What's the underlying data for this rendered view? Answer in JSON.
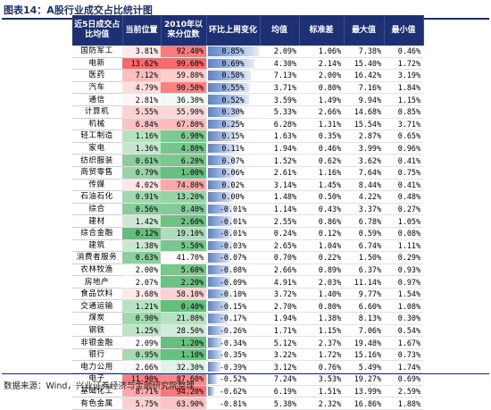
{
  "title": "图表14：A股行业成交占比统计图",
  "source": "数据来源：Wind，兴业证券经济与金融研究院整理",
  "headers": [
    "近5日成交占比均值",
    "当前位置",
    "2010年以来分位数",
    "环比上周变化",
    "均值",
    "标准差",
    "最大值",
    "最小值"
  ],
  "colors": {
    "header_bg": "#1c3073",
    "high": "#f8696b",
    "low": "#63be7b",
    "bar": "#5d83c8"
  },
  "rows": [
    {
      "name": "国防军工",
      "cur": "3.81%",
      "pct": "92.40%",
      "chg": "0.85%",
      "mean": "2.09%",
      "std": "1.06%",
      "max": "7.38%",
      "min": "0.46%"
    },
    {
      "name": "电新",
      "cur": "13.62%",
      "pct": "99.60%",
      "chg": "0.69%",
      "mean": "4.30%",
      "std": "2.14%",
      "max": "15.40%",
      "min": "1.72%"
    },
    {
      "name": "医药",
      "cur": "7.12%",
      "pct": "59.80%",
      "chg": "0.58%",
      "mean": "7.13%",
      "std": "2.00%",
      "max": "16.42%",
      "min": "3.19%"
    },
    {
      "name": "汽车",
      "cur": "4.79%",
      "pct": "90.50%",
      "chg": "0.55%",
      "mean": "3.71%",
      "std": "0.80%",
      "max": "7.16%",
      "min": "1.84%"
    },
    {
      "name": "通信",
      "cur": "2.81%",
      "pct": "36.30%",
      "chg": "0.52%",
      "mean": "3.59%",
      "std": "1.49%",
      "max": "9.94%",
      "min": "1.15%"
    },
    {
      "name": "计算机",
      "cur": "5.55%",
      "pct": "55.90%",
      "chg": "0.30%",
      "mean": "5.33%",
      "std": "2.66%",
      "max": "14.68%",
      "min": "0.85%"
    },
    {
      "name": "机械",
      "cur": "6.84%",
      "pct": "67.80%",
      "chg": "0.25%",
      "mean": "6.28%",
      "std": "1.31%",
      "max": "15.54%",
      "min": "3.71%"
    },
    {
      "name": "轻工制造",
      "cur": "1.16%",
      "pct": "6.90%",
      "chg": "0.15%",
      "mean": "1.63%",
      "std": "0.35%",
      "max": "2.87%",
      "min": "0.65%"
    },
    {
      "name": "家电",
      "cur": "1.36%",
      "pct": "4.80%",
      "chg": "0.11%",
      "mean": "1.94%",
      "std": "0.46%",
      "max": "3.99%",
      "min": "0.96%"
    },
    {
      "name": "纺织服装",
      "cur": "0.61%",
      "pct": "6.20%",
      "chg": "0.07%",
      "mean": "1.52%",
      "std": "0.62%",
      "max": "3.62%",
      "min": "0.41%"
    },
    {
      "name": "商贸零售",
      "cur": "0.79%",
      "pct": "1.00%",
      "chg": "0.06%",
      "mean": "2.61%",
      "std": "1.16%",
      "max": "7.64%",
      "min": "0.75%"
    },
    {
      "name": "传媒",
      "cur": "4.02%",
      "pct": "74.80%",
      "chg": "0.02%",
      "mean": "3.14%",
      "std": "1.45%",
      "max": "8.44%",
      "min": "0.41%"
    },
    {
      "name": "石油石化",
      "cur": "0.91%",
      "pct": "13.20%",
      "chg": "0.00%",
      "mean": "1.48%",
      "std": "0.50%",
      "max": "4.22%",
      "min": "0.48%"
    },
    {
      "name": "综合",
      "cur": "0.56%",
      "pct": "8.40%",
      "chg": "-0.01%",
      "mean": "1.14%",
      "std": "0.43%",
      "max": "3.37%",
      "min": "0.27%"
    },
    {
      "name": "建材",
      "cur": "1.42%",
      "pct": "2.60%",
      "chg": "-0.01%",
      "mean": "2.55%",
      "std": "0.86%",
      "max": "6.78%",
      "min": "1.05%"
    },
    {
      "name": "综合金融",
      "cur": "0.12%",
      "pct": "19.10%",
      "chg": "-0.01%",
      "mean": "0.24%",
      "std": "0.12%",
      "max": "0.59%",
      "min": "0.08%"
    },
    {
      "name": "建筑",
      "cur": "1.38%",
      "pct": "5.50%",
      "chg": "-0.03%",
      "mean": "2.65%",
      "std": "1.04%",
      "max": "6.74%",
      "min": "1.11%"
    },
    {
      "name": "消费者服务",
      "cur": "0.63%",
      "pct": "41.70%",
      "chg": "-0.07%",
      "mean": "0.70%",
      "std": "0.22%",
      "max": "1.50%",
      "min": "0.29%"
    },
    {
      "name": "农林牧渔",
      "cur": "2.00%",
      "pct": "5.60%",
      "chg": "-0.08%",
      "mean": "2.66%",
      "std": "0.89%",
      "max": "6.37%",
      "min": "0.93%"
    },
    {
      "name": "房地产",
      "cur": "2.07%",
      "pct": "2.20%",
      "chg": "-0.09%",
      "mean": "4.91%",
      "std": "2.03%",
      "max": "11.14%",
      "min": "0.97%"
    },
    {
      "name": "食品饮料",
      "cur": "3.68%",
      "pct": "58.10%",
      "chg": "-0.10%",
      "mean": "3.72%",
      "std": "1.40%",
      "max": "9.77%",
      "min": "1.54%"
    },
    {
      "name": "交通运输",
      "cur": "1.21%",
      "pct": "0.40%",
      "chg": "-0.15%",
      "mean": "2.70%",
      "std": "0.80%",
      "max": "6.60%",
      "min": "1.08%"
    },
    {
      "name": "煤炭",
      "cur": "0.90%",
      "pct": "21.80%",
      "chg": "-0.17%",
      "mean": "1.94%",
      "std": "1.38%",
      "max": "8.13%",
      "min": "0.30%"
    },
    {
      "name": "钢铁",
      "cur": "1.25%",
      "pct": "28.50%",
      "chg": "-0.26%",
      "mean": "1.71%",
      "std": "1.15%",
      "max": "7.06%",
      "min": "0.54%"
    },
    {
      "name": "非银金融",
      "cur": "2.09%",
      "pct": "1.20%",
      "chg": "-0.34%",
      "mean": "5.12%",
      "std": "2.37%",
      "max": "19.48%",
      "min": "1.67%"
    },
    {
      "name": "银行",
      "cur": "0.95%",
      "pct": "1.10%",
      "chg": "-0.35%",
      "mean": "3.22%",
      "std": "1.72%",
      "max": "15.16%",
      "min": "0.73%"
    },
    {
      "name": "电力公用",
      "cur": "2.66%",
      "pct": "32.30%",
      "chg": "-0.39%",
      "mean": "3.12%",
      "std": "0.76%",
      "max": "5.49%",
      "min": "1.74%"
    },
    {
      "name": "电子",
      "cur": "11.90%",
      "pct": "87.60%",
      "chg": "-0.52%",
      "mean": "7.24%",
      "std": "3.53%",
      "max": "19.27%",
      "min": "0.69%"
    },
    {
      "name": "基础化工",
      "cur": "8.71%",
      "pct": "94.20%",
      "chg": "-0.62%",
      "mean": "6.19%",
      "std": "1.51%",
      "max": "13.99%",
      "min": "2.59%"
    },
    {
      "name": "有色金属",
      "cur": "5.75%",
      "pct": "63.90%",
      "chg": "-0.81%",
      "mean": "5.38%",
      "std": "2.32%",
      "max": "16.86%",
      "min": "1.88%"
    }
  ]
}
